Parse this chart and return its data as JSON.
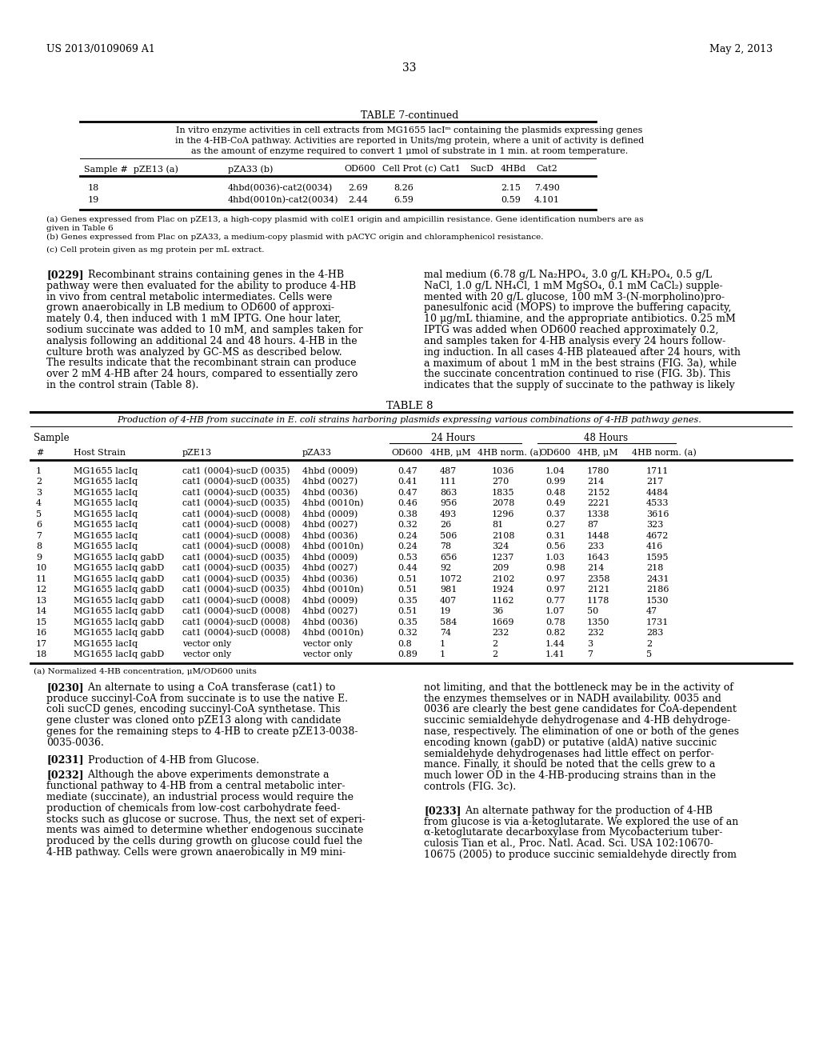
{
  "page_header_left": "US 2013/0109069 A1",
  "page_header_right": "May 2, 2013",
  "page_number": "33",
  "bg_color": "#ffffff",
  "table7_title": "TABLE 7-continued",
  "table7_caption_lines": [
    "In vitro enzyme activities in cell extracts from MG1655 lacIᵐ containing the plasmids expressing genes",
    "in the 4-HB-CoA pathway. Activities are reported in Units/mg protein, where a unit of activity is defined",
    "as the amount of enzyme required to convert 1 μmol of substrate in 1 min. at room temperature."
  ],
  "table7_headers": [
    "Sample #  pZE13 (a)",
    "pZA33 (b)",
    "OD600",
    "Cell Prot (c)",
    "Cat1",
    "SucD",
    "4HBd",
    "Cat2"
  ],
  "table7_rows": [
    [
      "18",
      "4hbd(0036)-cat2(0034)",
      "2.69",
      "8.26",
      "",
      "",
      "2.15",
      "7.490"
    ],
    [
      "19",
      "4hbd(0010n)-cat2(0034)",
      "2.44",
      "6.59",
      "",
      "",
      "0.59",
      "4.101"
    ]
  ],
  "table7_footnotes": [
    "(a) Genes expressed from Plac on pZE13, a high-copy plasmid with colE1 origin and ampicillin resistance. Gene identification numbers are as",
    "given in Table 6",
    "(b) Genes expressed from Plac on pZA33, a medium-copy plasmid with pACYC origin and chloramphenicol resistance.",
    "",
    "(c) Cell protein given as mg protein per mL extract."
  ],
  "para_0229_left_lines": [
    "[0229]   Recombinant strains containing genes in the 4-HB",
    "pathway were then evaluated for the ability to produce 4-HB",
    "in vivo from central metabolic intermediates. Cells were",
    "grown anaerobically in LB medium to OD600 of approxi-",
    "mately 0.4, then induced with 1 mM IPTG. One hour later,",
    "sodium succinate was added to 10 mM, and samples taken for",
    "analysis following an additional 24 and 48 hours. 4-HB in the",
    "culture broth was analyzed by GC-MS as described below.",
    "The results indicate that the recombinant strain can produce",
    "over 2 mM 4-HB after 24 hours, compared to essentially zero",
    "in the control strain (Table 8)."
  ],
  "para_0229_right_lines": [
    "mal medium (6.78 g/L Na₂HPO₄, 3.0 g/L KH₂PO₄, 0.5 g/L",
    "NaCl, 1.0 g/L NH₄Cl, 1 mM MgSO₄, 0.1 mM CaCl₂) supple-",
    "mented with 20 g/L glucose, 100 mM 3-(N-morpholino)pro-",
    "panesulfonic acid (MOPS) to improve the buffering capacity,",
    "10 μg/mL thiamine, and the appropriate antibiotics. 0.25 mM",
    "IPTG was added when OD600 reached approximately 0.2,",
    "and samples taken for 4-HB analysis every 24 hours follow-",
    "ing induction. In all cases 4-HB plateaued after 24 hours, with",
    "a maximum of about 1 mM in the best strains (FIG. 3a), while",
    "the succinate concentration continued to rise (FIG. 3b). This",
    "indicates that the supply of succinate to the pathway is likely"
  ],
  "table8_title": "TABLE 8",
  "table8_caption": "Production of 4-HB from succinate in E. coli strains harboring plasmids expressing various combinations of 4-HB pathway genes.",
  "table8_rows": [
    [
      "1",
      "MG1655 lacIq",
      "cat1 (0004)-sucD (0035)",
      "4hbd (0009)",
      "0.47",
      "487",
      "1036",
      "1.04",
      "1780",
      "1711"
    ],
    [
      "2",
      "MG1655 lacIq",
      "cat1 (0004)-sucD (0035)",
      "4hbd (0027)",
      "0.41",
      "111",
      "270",
      "0.99",
      "214",
      "217"
    ],
    [
      "3",
      "MG1655 lacIq",
      "cat1 (0004)-sucD (0035)",
      "4hbd (0036)",
      "0.47",
      "863",
      "1835",
      "0.48",
      "2152",
      "4484"
    ],
    [
      "4",
      "MG1655 lacIq",
      "cat1 (0004)-sucD (0035)",
      "4hbd (0010n)",
      "0.46",
      "956",
      "2078",
      "0.49",
      "2221",
      "4533"
    ],
    [
      "5",
      "MG1655 lacIq",
      "cat1 (0004)-sucD (0008)",
      "4hbd (0009)",
      "0.38",
      "493",
      "1296",
      "0.37",
      "1338",
      "3616"
    ],
    [
      "6",
      "MG1655 lacIq",
      "cat1 (0004)-sucD (0008)",
      "4hbd (0027)",
      "0.32",
      "26",
      "81",
      "0.27",
      "87",
      "323"
    ],
    [
      "7",
      "MG1655 lacIq",
      "cat1 (0004)-sucD (0008)",
      "4hbd (0036)",
      "0.24",
      "506",
      "2108",
      "0.31",
      "1448",
      "4672"
    ],
    [
      "8",
      "MG1655 lacIq",
      "cat1 (0004)-sucD (0008)",
      "4hbd (0010n)",
      "0.24",
      "78",
      "324",
      "0.56",
      "233",
      "416"
    ],
    [
      "9",
      "MG1655 lacIq gabD",
      "cat1 (0004)-sucD (0035)",
      "4hbd (0009)",
      "0.53",
      "656",
      "1237",
      "1.03",
      "1643",
      "1595"
    ],
    [
      "10",
      "MG1655 lacIq gabD",
      "cat1 (0004)-sucD (0035)",
      "4hbd (0027)",
      "0.44",
      "92",
      "209",
      "0.98",
      "214",
      "218"
    ],
    [
      "11",
      "MG1655 lacIq gabD",
      "cat1 (0004)-sucD (0035)",
      "4hbd (0036)",
      "0.51",
      "1072",
      "2102",
      "0.97",
      "2358",
      "2431"
    ],
    [
      "12",
      "MG1655 lacIq gabD",
      "cat1 (0004)-sucD (0035)",
      "4hbd (0010n)",
      "0.51",
      "981",
      "1924",
      "0.97",
      "2121",
      "2186"
    ],
    [
      "13",
      "MG1655 lacIq gabD",
      "cat1 (0004)-sucD (0008)",
      "4hbd (0009)",
      "0.35",
      "407",
      "1162",
      "0.77",
      "1178",
      "1530"
    ],
    [
      "14",
      "MG1655 lacIq gabD",
      "cat1 (0004)-sucD (0008)",
      "4hbd (0027)",
      "0.51",
      "19",
      "36",
      "1.07",
      "50",
      "47"
    ],
    [
      "15",
      "MG1655 lacIq gabD",
      "cat1 (0004)-sucD (0008)",
      "4hbd (0036)",
      "0.35",
      "584",
      "1669",
      "0.78",
      "1350",
      "1731"
    ],
    [
      "16",
      "MG1655 lacIq gabD",
      "cat1 (0004)-sucD (0008)",
      "4hbd (0010n)",
      "0.32",
      "74",
      "232",
      "0.82",
      "232",
      "283"
    ],
    [
      "17",
      "MG1655 lacIq",
      "vector only",
      "vector only",
      "0.8",
      "1",
      "2",
      "1.44",
      "3",
      "2"
    ],
    [
      "18",
      "MG1655 lacIq gabD",
      "vector only",
      "vector only",
      "0.89",
      "1",
      "2",
      "1.41",
      "7",
      "5"
    ]
  ],
  "table8_footnote": "(a) Normalized 4-HB concentration, μM/OD600 units",
  "para_0230_left_lines": [
    "[0230]   An alternate to using a CoA transferase (cat1) to",
    "produce succinyl-CoA from succinate is to use the native E.",
    "coli sucCD genes, encoding succinyl-CoA synthetase. This",
    "gene cluster was cloned onto pZE13 along with candidate",
    "genes for the remaining steps to 4-HB to create pZE13-0038-",
    "0035-0036."
  ],
  "para_0231_left_lines": [
    "[0231]   Production of 4-HB from Glucose."
  ],
  "para_0232_left_lines": [
    "[0232]   Although the above experiments demonstrate a",
    "functional pathway to 4-HB from a central metabolic inter-",
    "mediate (succinate), an industrial process would require the",
    "production of chemicals from low-cost carbohydrate feed-",
    "stocks such as glucose or sucrose. Thus, the next set of experi-",
    "ments was aimed to determine whether endogenous succinate",
    "produced by the cells during growth on glucose could fuel the",
    "4-HB pathway. Cells were grown anaerobically in M9 mini-"
  ],
  "para_0230_right_lines": [
    "not limiting, and that the bottleneck may be in the activity of",
    "the enzymes themselves or in NADH availability. 0035 and",
    "0036 are clearly the best gene candidates for CoA-dependent",
    "succinic semialdehyde dehydrogenase and 4-HB dehydroge-",
    "nase, respectively. The elimination of one or both of the genes",
    "encoding known (gabD) or putative (aldA) native succinic",
    "semialdehyde dehydrogenases had little effect on perfor-",
    "mance. Finally, it should be noted that the cells grew to a",
    "much lower OD in the 4-HB-producing strains than in the",
    "controls (FIG. 3c)."
  ],
  "para_0233_right_lines": [
    "[0233]   An alternate pathway for the production of 4-HB",
    "from glucose is via a-ketoglutarate. We explored the use of an",
    "α-ketoglutarate decarboxylase from Mycobacterium tuber-",
    "culosis Tian et al., Proc. Natl. Acad. Sci. USA 102:10670-",
    "10675 (2005) to produce succinic semialdehyde directly from"
  ]
}
